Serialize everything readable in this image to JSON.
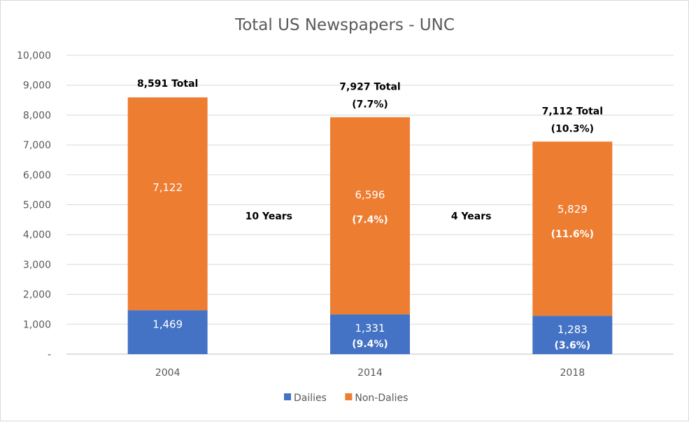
{
  "chart_data": {
    "type": "bar",
    "stacked": true,
    "title": "Total US Newspapers - UNC",
    "categories": [
      "2004",
      "2014",
      "2018"
    ],
    "ylim": [
      0,
      10000
    ],
    "y_ticks": [
      "-",
      "1,000",
      "2,000",
      "3,000",
      "4,000",
      "5,000",
      "6,000",
      "7,000",
      "8,000",
      "9,000",
      "10,000"
    ],
    "grid": true,
    "legend_position": "bottom",
    "series": [
      {
        "name": "Dailies",
        "color": "#4472c4",
        "values": [
          1469,
          1331,
          1283
        ],
        "labels": [
          "1,469",
          "1,331",
          "1,283"
        ],
        "sublabels": [
          "",
          "(9.4%)",
          "(3.6%)"
        ]
      },
      {
        "name": "Non-Dalies",
        "color": "#ed7d31",
        "values": [
          7122,
          6596,
          5829
        ],
        "labels": [
          "7,122",
          "6,596",
          "5,829"
        ],
        "sublabels": [
          "",
          "(7.4%)",
          "(11.6%)"
        ]
      }
    ],
    "totals": [
      8591,
      7927,
      7112
    ],
    "total_labels": [
      "8,591 Total",
      "7,927 Total",
      "7,112 Total"
    ],
    "total_sublabels": [
      "",
      "(7.7%)",
      "(10.3%)"
    ],
    "annotations": [
      {
        "text": "10 Years",
        "between": [
          0,
          1
        ],
        "y": 5000
      },
      {
        "text": "4 Years",
        "between": [
          1,
          2
        ],
        "y": 5000
      }
    ]
  }
}
